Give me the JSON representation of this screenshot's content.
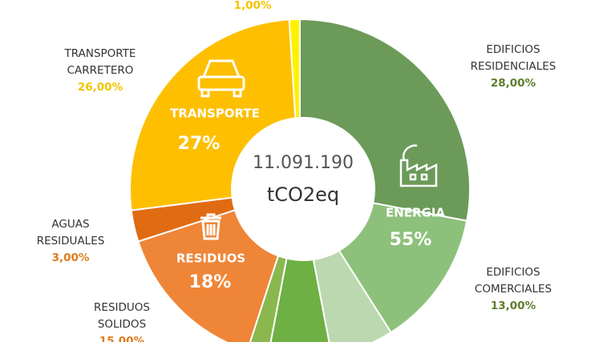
{
  "chart_data": {
    "type": "donut",
    "categories": [
      "EDIFICIOS RESIDENCIALES",
      "EDIFICIOS COMERCIALES",
      null,
      null,
      null,
      "RESIDUOS SOLIDOS",
      "AGUAS RESIDUALES",
      "TRANSPORTE CARRETERO",
      null
    ],
    "values": [
      28,
      13,
      6,
      6,
      2,
      15,
      3,
      26,
      1
    ],
    "value_labels": [
      "28,00%",
      "13,00%",
      null,
      null,
      null,
      "15,00%",
      "3,00%",
      "26,00%",
      "1,00%"
    ],
    "colors": [
      "#6b9a59",
      "#8dc17b",
      "#bcd8b0",
      "#6eb043",
      "#8ab84f",
      "#ef8537",
      "#e06b12",
      "#fdbf00",
      "#fff200"
    ],
    "label_colors": [
      "#5e7d2e",
      "#5e7d2e",
      null,
      null,
      null,
      "#e07a1c",
      "#e07a1c",
      "#f2c400",
      "#f2c400"
    ],
    "groups": [
      {
        "name": "ENERGIA",
        "value": 55,
        "value_label": "55%"
      },
      {
        "name": "TRANSPORTE",
        "value": 27,
        "value_label": "27%"
      },
      {
        "name": "RESIDUOS",
        "value": 18,
        "value_label": "18%"
      }
    ],
    "center_value": {
      "value": 11091190,
      "label": "11.091.190"
    },
    "center_unit": "tCO2eq"
  }
}
